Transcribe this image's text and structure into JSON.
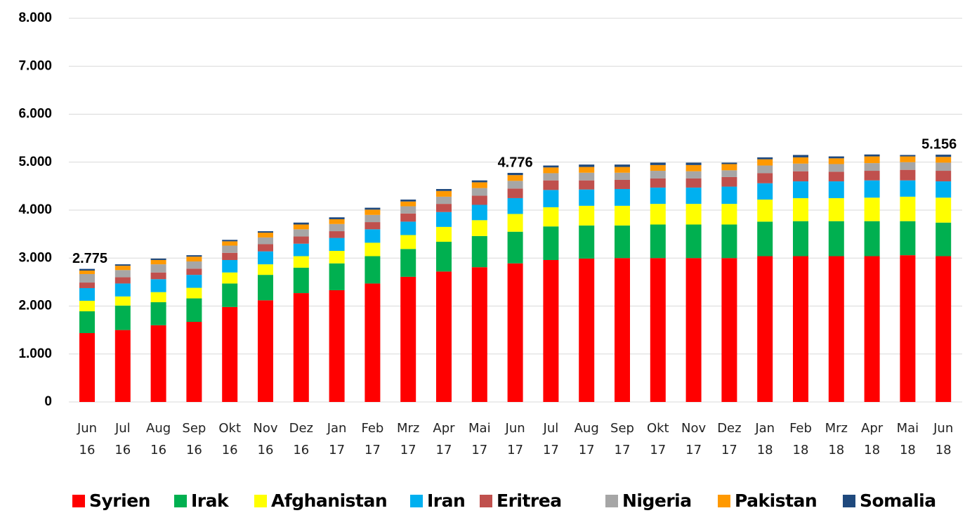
{
  "chart_data": {
    "type": "stacked_bar",
    "categories": [
      "Jun 16",
      "Jul 16",
      "Aug 16",
      "Sep 16",
      "Okt 16",
      "Nov 16",
      "Dez 16",
      "Jan 17",
      "Feb 17",
      "Mrz 17",
      "Apr 17",
      "Mai 17",
      "Jun 17",
      "Jul 17",
      "Aug 17",
      "Sep 17",
      "Okt 17",
      "Nov 17",
      "Dez 17",
      "Jan 18",
      "Feb 18",
      "Mrz 18",
      "Apr 18",
      "Mai 18",
      "Jun 18"
    ],
    "series": [
      {
        "name": "Syrien",
        "color": "#ff0000",
        "values": [
          1436,
          1500,
          1600,
          1670,
          1980,
          2120,
          2270,
          2330,
          2470,
          2610,
          2720,
          2810,
          2890,
          2960,
          2990,
          3000,
          3000,
          3000,
          3000,
          3040,
          3040,
          3040,
          3040,
          3060,
          3040
        ]
      },
      {
        "name": "Irak",
        "color": "#00b050",
        "values": [
          454,
          510,
          480,
          490,
          490,
          530,
          530,
          560,
          570,
          580,
          620,
          650,
          660,
          700,
          690,
          680,
          700,
          700,
          700,
          720,
          730,
          730,
          730,
          710,
          700
        ]
      },
      {
        "name": "Afghanistan",
        "color": "#ffff00",
        "values": [
          220,
          190,
          210,
          220,
          230,
          220,
          240,
          260,
          280,
          290,
          310,
          330,
          370,
          400,
          410,
          410,
          430,
          430,
          430,
          460,
          480,
          480,
          490,
          510,
          520
        ]
      },
      {
        "name": "Iran",
        "color": "#00b0f0",
        "values": [
          264,
          270,
          270,
          270,
          260,
          270,
          260,
          270,
          280,
          280,
          310,
          320,
          330,
          360,
          340,
          350,
          340,
          340,
          360,
          340,
          350,
          350,
          360,
          340,
          340
        ]
      },
      {
        "name": "Eritrea",
        "color": "#c0504d",
        "values": [
          116,
          130,
          140,
          130,
          150,
          150,
          150,
          140,
          150,
          170,
          170,
          190,
          200,
          200,
          190,
          190,
          190,
          190,
          200,
          210,
          210,
          200,
          200,
          220,
          220
        ]
      },
      {
        "name": "Nigeria",
        "color": "#a6a6a6",
        "values": [
          177,
          150,
          170,
          150,
          150,
          140,
          150,
          150,
          150,
          150,
          150,
          160,
          160,
          150,
          160,
          150,
          160,
          150,
          140,
          160,
          160,
          160,
          160,
          160,
          170
        ]
      },
      {
        "name": "Pakistan",
        "color": "#ff9900",
        "values": [
          73,
          90,
          90,
          100,
          90,
          100,
          100,
          100,
          110,
          100,
          120,
          120,
          120,
          120,
          120,
          120,
          120,
          130,
          130,
          130,
          130,
          120,
          140,
          120,
          120
        ]
      },
      {
        "name": "Somalia",
        "color": "#1f497d",
        "values": [
          35,
          30,
          30,
          30,
          30,
          30,
          40,
          40,
          40,
          40,
          40,
          40,
          46,
          40,
          50,
          50,
          50,
          50,
          30,
          40,
          50,
          40,
          40,
          30,
          46
        ]
      }
    ],
    "ylim": [
      0,
      8000
    ],
    "yticks": [
      0,
      {
        "value": 1000,
        "label": "1.000"
      },
      {
        "value": 2000,
        "label": "2.000"
      },
      {
        "value": 3000,
        "label": "3.000"
      },
      {
        "value": 4000,
        "label": "4.000"
      },
      {
        "value": 5000,
        "label": "5.000"
      },
      {
        "value": 6000,
        "label": "6.000"
      },
      {
        "value": 7000,
        "label": "7.000"
      },
      {
        "value": 8000,
        "label": "8.000"
      }
    ],
    "grid": true,
    "annotations": [
      {
        "x": "Jun 16",
        "value": 2775,
        "label": "2.775"
      },
      {
        "x": "Jun 17",
        "value": 4776,
        "label": "4.776"
      },
      {
        "x": "Jun 18",
        "value": 5156,
        "label": "5.156"
      }
    ]
  }
}
